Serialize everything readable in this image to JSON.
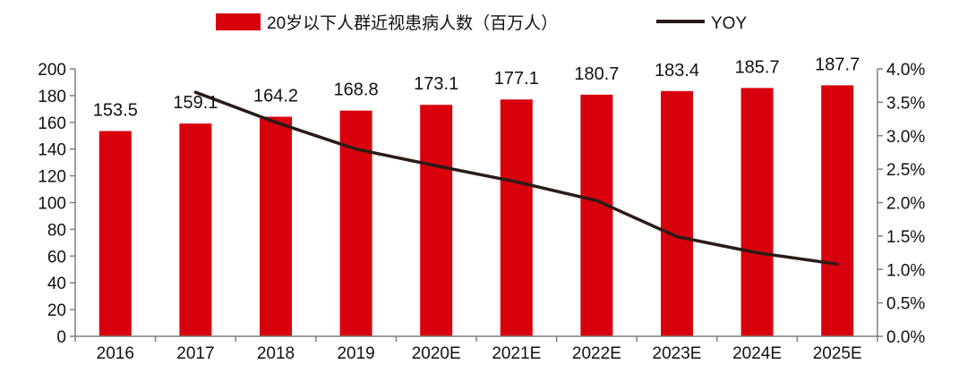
{
  "chart_data": {
    "type": "bar+line",
    "categories": [
      "2016",
      "2017",
      "2018",
      "2019",
      "2020E",
      "2021E",
      "2022E",
      "2023E",
      "2024E",
      "2025E"
    ],
    "series": [
      {
        "name": "20岁以下人群近视患病人数（百万人）",
        "type": "bar",
        "axis": "left",
        "color": "#d9000d",
        "values": [
          153.5,
          159.1,
          164.2,
          168.8,
          173.1,
          177.1,
          180.7,
          183.4,
          185.7,
          187.7
        ],
        "labels": [
          "153.5",
          "159.1",
          "164.2",
          "168.8",
          "173.1",
          "177.1",
          "180.7",
          "183.4",
          "185.7",
          "187.7"
        ]
      },
      {
        "name": "YOY",
        "type": "line",
        "axis": "right",
        "color": "#2b1b17",
        "values": [
          null,
          3.65,
          3.2,
          2.8,
          2.55,
          2.31,
          2.03,
          1.49,
          1.25,
          1.08
        ]
      }
    ],
    "y_left": {
      "min": 0,
      "max": 200,
      "ticks": [
        "0",
        "20",
        "40",
        "60",
        "80",
        "100",
        "120",
        "140",
        "160",
        "180",
        "200"
      ]
    },
    "y_right": {
      "min": 0,
      "max": 4.0,
      "ticks": [
        "0.0%",
        "0.5%",
        "1.0%",
        "1.5%",
        "2.0%",
        "2.5%",
        "3.0%",
        "3.5%",
        "4.0%"
      ]
    },
    "legend_position": "top-center",
    "grid": false
  }
}
